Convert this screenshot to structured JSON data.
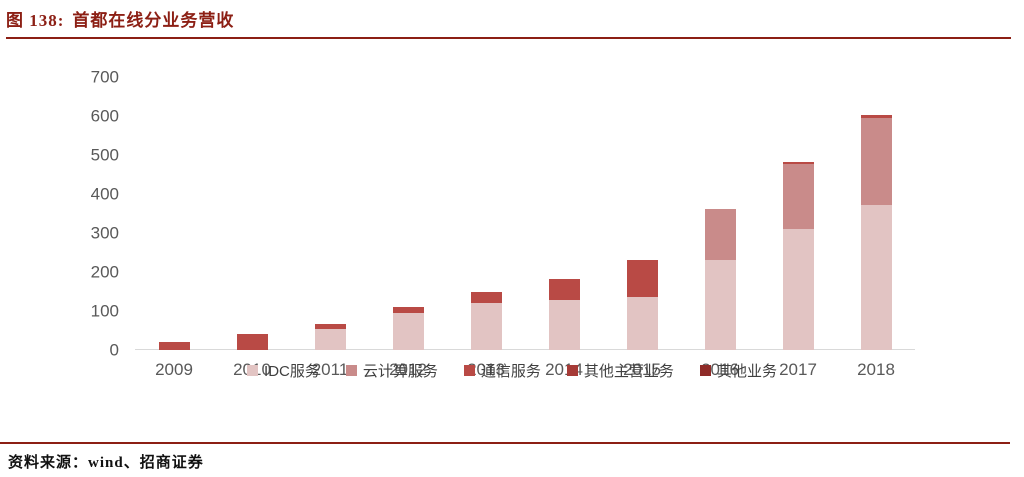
{
  "page": {
    "figure_label": "图 138:",
    "figure_title": "首都在线分业务营收",
    "source_label": "资料来源：",
    "source_text": "wind、招商证券",
    "accent_color": "#8c1f14"
  },
  "chart_data": {
    "type": "bar",
    "stacked": true,
    "title": "首都在线分业务营收",
    "categories": [
      "2009",
      "2010",
      "2011",
      "2012",
      "2013",
      "2014",
      "2015",
      "2016",
      "2017",
      "2018"
    ],
    "series": [
      {
        "name": "IDC服务",
        "color": "#e2c4c3",
        "values": [
          0,
          0,
          55,
          95,
          120,
          127,
          135,
          230,
          310,
          372
        ]
      },
      {
        "name": "云计算服务",
        "color": "#c98b8a",
        "values": [
          0,
          0,
          0,
          0,
          0,
          0,
          0,
          131,
          167,
          224
        ]
      },
      {
        "name": "通信服务",
        "color": "#b94a45",
        "values": [
          20,
          40,
          13,
          15,
          30,
          55,
          95,
          0,
          5,
          7
        ]
      },
      {
        "name": "其他主营业务",
        "color": "#a63b37",
        "values": [
          0,
          0,
          0,
          0,
          0,
          0,
          0,
          0,
          0,
          0
        ]
      },
      {
        "name": "其他业务",
        "color": "#8f2b28",
        "values": [
          0,
          0,
          0,
          0,
          0,
          0,
          0,
          0,
          0,
          0
        ]
      }
    ],
    "totals": [
      20,
      40,
      68,
      110,
      150,
      182,
      230,
      361,
      482,
      603
    ],
    "xlabel": "",
    "ylabel": "",
    "ylim": [
      0,
      700
    ],
    "yticks": [
      0,
      100,
      200,
      300,
      400,
      500,
      600,
      700
    ],
    "grid": false,
    "legend_position": "bottom",
    "axis_label_color": "#595959",
    "baseline_color": "#d9d9d9"
  }
}
